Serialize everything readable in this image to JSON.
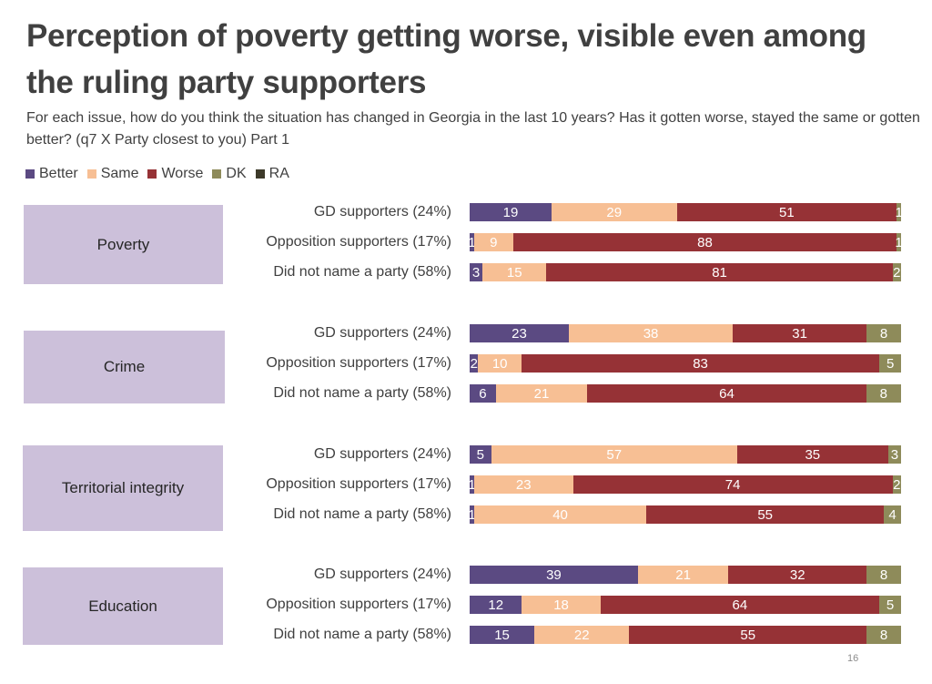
{
  "chart_data": {
    "type": "bar",
    "orientation": "horizontal",
    "stacked": true,
    "title": "Perception of poverty getting worse, visible even among the ruling party supporters",
    "subtitle": "For each issue, how do you think the situation has changed in Georgia in the last 10 years? Has it gotten worse, stayed the same or gotten better? (q7 X Party closest to you) Part 1",
    "xlim": [
      0,
      100
    ],
    "legend_position": "top-left",
    "legend": [
      {
        "name": "Better",
        "color": "#5b4a82"
      },
      {
        "name": "Same",
        "color": "#f7bf94"
      },
      {
        "name": "Worse",
        "color": "#963236"
      },
      {
        "name": "DK",
        "color": "#8e8b5a"
      },
      {
        "name": "RA",
        "color": "#3d3a2a"
      }
    ],
    "groups": [
      {
        "name": "Poverty",
        "rows": [
          {
            "label": "GD supporters (24%)",
            "values": [
              19,
              29,
              51,
              1,
              0
            ]
          },
          {
            "label": "Opposition supporters (17%)",
            "values": [
              1,
              9,
              88,
              1,
              0
            ]
          },
          {
            "label": "Did not name a party (58%)",
            "values": [
              3,
              15,
              81,
              2,
              0
            ]
          }
        ]
      },
      {
        "name": "Crime",
        "rows": [
          {
            "label": "GD supporters (24%)",
            "values": [
              23,
              38,
              31,
              8,
              0
            ]
          },
          {
            "label": "Opposition supporters (17%)",
            "values": [
              2,
              10,
              83,
              5,
              0
            ]
          },
          {
            "label": "Did not name a party (58%)",
            "values": [
              6,
              21,
              64,
              8,
              0
            ]
          }
        ]
      },
      {
        "name": "Territorial integrity",
        "rows": [
          {
            "label": "GD supporters (24%)",
            "values": [
              5,
              57,
              35,
              3,
              0
            ]
          },
          {
            "label": "Opposition supporters (17%)",
            "values": [
              1,
              23,
              74,
              2,
              0
            ]
          },
          {
            "label": "Did not name a party (58%)",
            "values": [
              1,
              40,
              55,
              4,
              0
            ]
          }
        ]
      },
      {
        "name": "Education",
        "rows": [
          {
            "label": "GD supporters (24%)",
            "values": [
              39,
              21,
              32,
              8,
              0
            ]
          },
          {
            "label": "Opposition supporters (17%)",
            "values": [
              12,
              18,
              64,
              5,
              0
            ]
          },
          {
            "label": "Did not name a party (58%)",
            "values": [
              15,
              22,
              55,
              8,
              0
            ]
          }
        ]
      }
    ]
  },
  "page_number": "16"
}
